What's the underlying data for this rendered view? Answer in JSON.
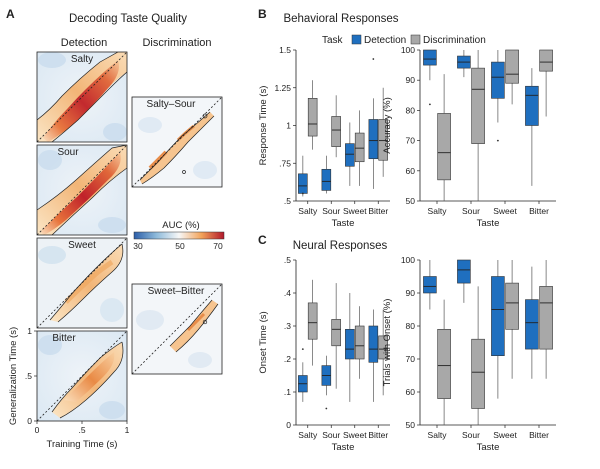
{
  "panel_a": {
    "letter": "A",
    "title": "Decoding Taste Quality",
    "col_detection": "Detection",
    "col_discrimination": "Discrimination",
    "maps_detection": [
      "Salty",
      "Sour",
      "Sweet",
      "Bitter"
    ],
    "maps_discrimination": [
      "Salty–Sour",
      "Sweet–Bitter"
    ],
    "colorbar": {
      "label": "AUC (%)",
      "ticks": [
        "30",
        "50",
        "70"
      ]
    },
    "xlabel": "Training Time (s)",
    "ylabel": "Generalization Time (s)",
    "xticks": [
      "0",
      ".5",
      "1"
    ],
    "yticks": [
      "0",
      ".5",
      "1"
    ],
    "colors": {
      "low": "#2c6fb5",
      "mid": "#f7f7f7",
      "high": "#b2182b"
    }
  },
  "panel_b": {
    "letter": "B",
    "title": "Behavioral Responses",
    "legend_title": "Task",
    "legend": [
      "Detection",
      "Discrimination"
    ]
  },
  "panel_c": {
    "letter": "C",
    "title": "Neural Responses"
  },
  "colors": {
    "detection": "#1f6fbf",
    "discrimination": "#a8a8a8"
  },
  "chart_data": [
    {
      "type": "box",
      "title": "Response Time",
      "categories": [
        "Salty",
        "Sour",
        "Sweet",
        "Bitter"
      ],
      "xlabel": "Taste",
      "ylabel": "Response Time (s)",
      "ylim": [
        0.5,
        1.5
      ],
      "yticks": [
        0.5,
        0.75,
        1,
        1.25,
        1.5
      ],
      "ytick_labels": [
        ".5",
        ".75",
        "1",
        "1.25",
        "1.5"
      ],
      "series": [
        {
          "name": "Detection",
          "boxes": [
            {
              "whislo": 0.53,
              "q1": 0.55,
              "med": 0.6,
              "q3": 0.68,
              "whishi": 0.8,
              "fliers": [
                0.55
              ]
            },
            {
              "whislo": 0.55,
              "q1": 0.57,
              "med": 0.63,
              "q3": 0.71,
              "whishi": 0.8,
              "fliers": []
            },
            {
              "whislo": 0.6,
              "q1": 0.73,
              "med": 0.81,
              "q3": 0.88,
              "whishi": 1.02,
              "fliers": []
            },
            {
              "whislo": 0.58,
              "q1": 0.78,
              "med": 0.9,
              "q3": 1.04,
              "whishi": 1.18,
              "fliers": [
                1.44
              ]
            }
          ]
        },
        {
          "name": "Discrimination",
          "boxes": [
            {
              "whislo": 0.84,
              "q1": 0.93,
              "med": 1.01,
              "q3": 1.18,
              "whishi": 1.3,
              "fliers": []
            },
            {
              "whislo": 0.79,
              "q1": 0.86,
              "med": 0.97,
              "q3": 1.06,
              "whishi": 1.2,
              "fliers": []
            },
            {
              "whislo": 0.6,
              "q1": 0.76,
              "med": 0.85,
              "q3": 0.95,
              "whishi": 1.1,
              "fliers": []
            },
            {
              "whislo": 0.66,
              "q1": 0.77,
              "med": 0.9,
              "q3": 1.04,
              "whishi": 1.25,
              "fliers": []
            }
          ]
        }
      ]
    },
    {
      "type": "box",
      "title": "Accuracy",
      "categories": [
        "Salty",
        "Sour",
        "Sweet",
        "Bitter"
      ],
      "xlabel": "Taste",
      "ylabel": "Accuracy (%)",
      "ylim": [
        50,
        100
      ],
      "yticks": [
        50,
        60,
        70,
        80,
        90,
        100
      ],
      "ytick_labels": [
        "50",
        "60",
        "70",
        "80",
        "90",
        "100"
      ],
      "series": [
        {
          "name": "Detection",
          "boxes": [
            {
              "whislo": 90,
              "q1": 95,
              "med": 97,
              "q3": 100,
              "whishi": 100,
              "fliers": [
                82
              ]
            },
            {
              "whislo": 91,
              "q1": 94,
              "med": 96,
              "q3": 98,
              "whishi": 100,
              "fliers": []
            },
            {
              "whislo": 76,
              "q1": 84,
              "med": 91,
              "q3": 96,
              "whishi": 100,
              "fliers": [
                70
              ]
            },
            {
              "whislo": 55,
              "q1": 75,
              "med": 85,
              "q3": 88,
              "whishi": 94,
              "fliers": []
            }
          ]
        },
        {
          "name": "Discrimination",
          "boxes": [
            {
              "whislo": 50,
              "q1": 57,
              "med": 66,
              "q3": 79,
              "whishi": 92,
              "fliers": []
            },
            {
              "whislo": 50,
              "q1": 69,
              "med": 87,
              "q3": 94,
              "whishi": 100,
              "fliers": []
            },
            {
              "whislo": 82,
              "q1": 89,
              "med": 92,
              "q3": 100,
              "whishi": 100,
              "fliers": []
            },
            {
              "whislo": 78,
              "q1": 93,
              "med": 96,
              "q3": 100,
              "whishi": 100,
              "fliers": []
            }
          ]
        }
      ]
    },
    {
      "type": "box",
      "title": "Onset Time",
      "categories": [
        "Salty",
        "Sour",
        "Sweet",
        "Bitter"
      ],
      "xlabel": "Taste",
      "ylabel": "Onset Time (s)",
      "ylim": [
        0,
        0.5
      ],
      "yticks": [
        0,
        0.1,
        0.2,
        0.3,
        0.4,
        0.5
      ],
      "ytick_labels": [
        "0",
        ".1",
        ".2",
        ".3",
        ".4",
        ".5"
      ],
      "series": [
        {
          "name": "Detection",
          "boxes": [
            {
              "whislo": 0.07,
              "q1": 0.1,
              "med": 0.125,
              "q3": 0.15,
              "whishi": 0.19,
              "fliers": [
                0.23
              ]
            },
            {
              "whislo": 0.09,
              "q1": 0.12,
              "med": 0.15,
              "q3": 0.18,
              "whishi": 0.21,
              "fliers": [
                0.05
              ]
            },
            {
              "whislo": 0.07,
              "q1": 0.2,
              "med": 0.23,
              "q3": 0.29,
              "whishi": 0.4,
              "fliers": []
            },
            {
              "whislo": 0.07,
              "q1": 0.19,
              "med": 0.23,
              "q3": 0.3,
              "whishi": 0.35,
              "fliers": []
            }
          ]
        },
        {
          "name": "Discrimination",
          "boxes": [
            {
              "whislo": 0.18,
              "q1": 0.26,
              "med": 0.31,
              "q3": 0.37,
              "whishi": 0.44,
              "fliers": []
            },
            {
              "whislo": 0.11,
              "q1": 0.24,
              "med": 0.29,
              "q3": 0.32,
              "whishi": 0.43,
              "fliers": []
            },
            {
              "whislo": 0.14,
              "q1": 0.2,
              "med": 0.24,
              "q3": 0.3,
              "whishi": 0.36,
              "fliers": []
            },
            {
              "whislo": 0.09,
              "q1": 0.2,
              "med": 0.23,
              "q3": 0.27,
              "whishi": 0.35,
              "fliers": []
            }
          ]
        }
      ]
    },
    {
      "type": "box",
      "title": "Trials with Onset",
      "categories": [
        "Salty",
        "Sour",
        "Sweet",
        "Bitter"
      ],
      "xlabel": "Taste",
      "ylabel": "Trials with Onset (%)",
      "ylim": [
        50,
        100
      ],
      "yticks": [
        50,
        60,
        70,
        80,
        90,
        100
      ],
      "ytick_labels": [
        "50",
        "60",
        "70",
        "80",
        "90",
        "100"
      ],
      "series": [
        {
          "name": "Detection",
          "boxes": [
            {
              "whislo": 85,
              "q1": 90,
              "med": 92,
              "q3": 95,
              "whishi": 100,
              "fliers": []
            },
            {
              "whislo": 87,
              "q1": 93,
              "med": 97,
              "q3": 100,
              "whishi": 100,
              "fliers": []
            },
            {
              "whislo": 58,
              "q1": 71,
              "med": 85,
              "q3": 95,
              "whishi": 100,
              "fliers": []
            },
            {
              "whislo": 64,
              "q1": 73,
              "med": 81,
              "q3": 88,
              "whishi": 98,
              "fliers": []
            }
          ]
        },
        {
          "name": "Discrimination",
          "boxes": [
            {
              "whislo": 50,
              "q1": 58,
              "med": 68,
              "q3": 79,
              "whishi": 88,
              "fliers": []
            },
            {
              "whislo": 50,
              "q1": 55,
              "med": 66,
              "q3": 76,
              "whishi": 92,
              "fliers": []
            },
            {
              "whislo": 64,
              "q1": 79,
              "med": 87,
              "q3": 93,
              "whishi": 100,
              "fliers": []
            },
            {
              "whislo": 64,
              "q1": 73,
              "med": 87,
              "q3": 92,
              "whishi": 100,
              "fliers": []
            }
          ]
        }
      ]
    }
  ]
}
